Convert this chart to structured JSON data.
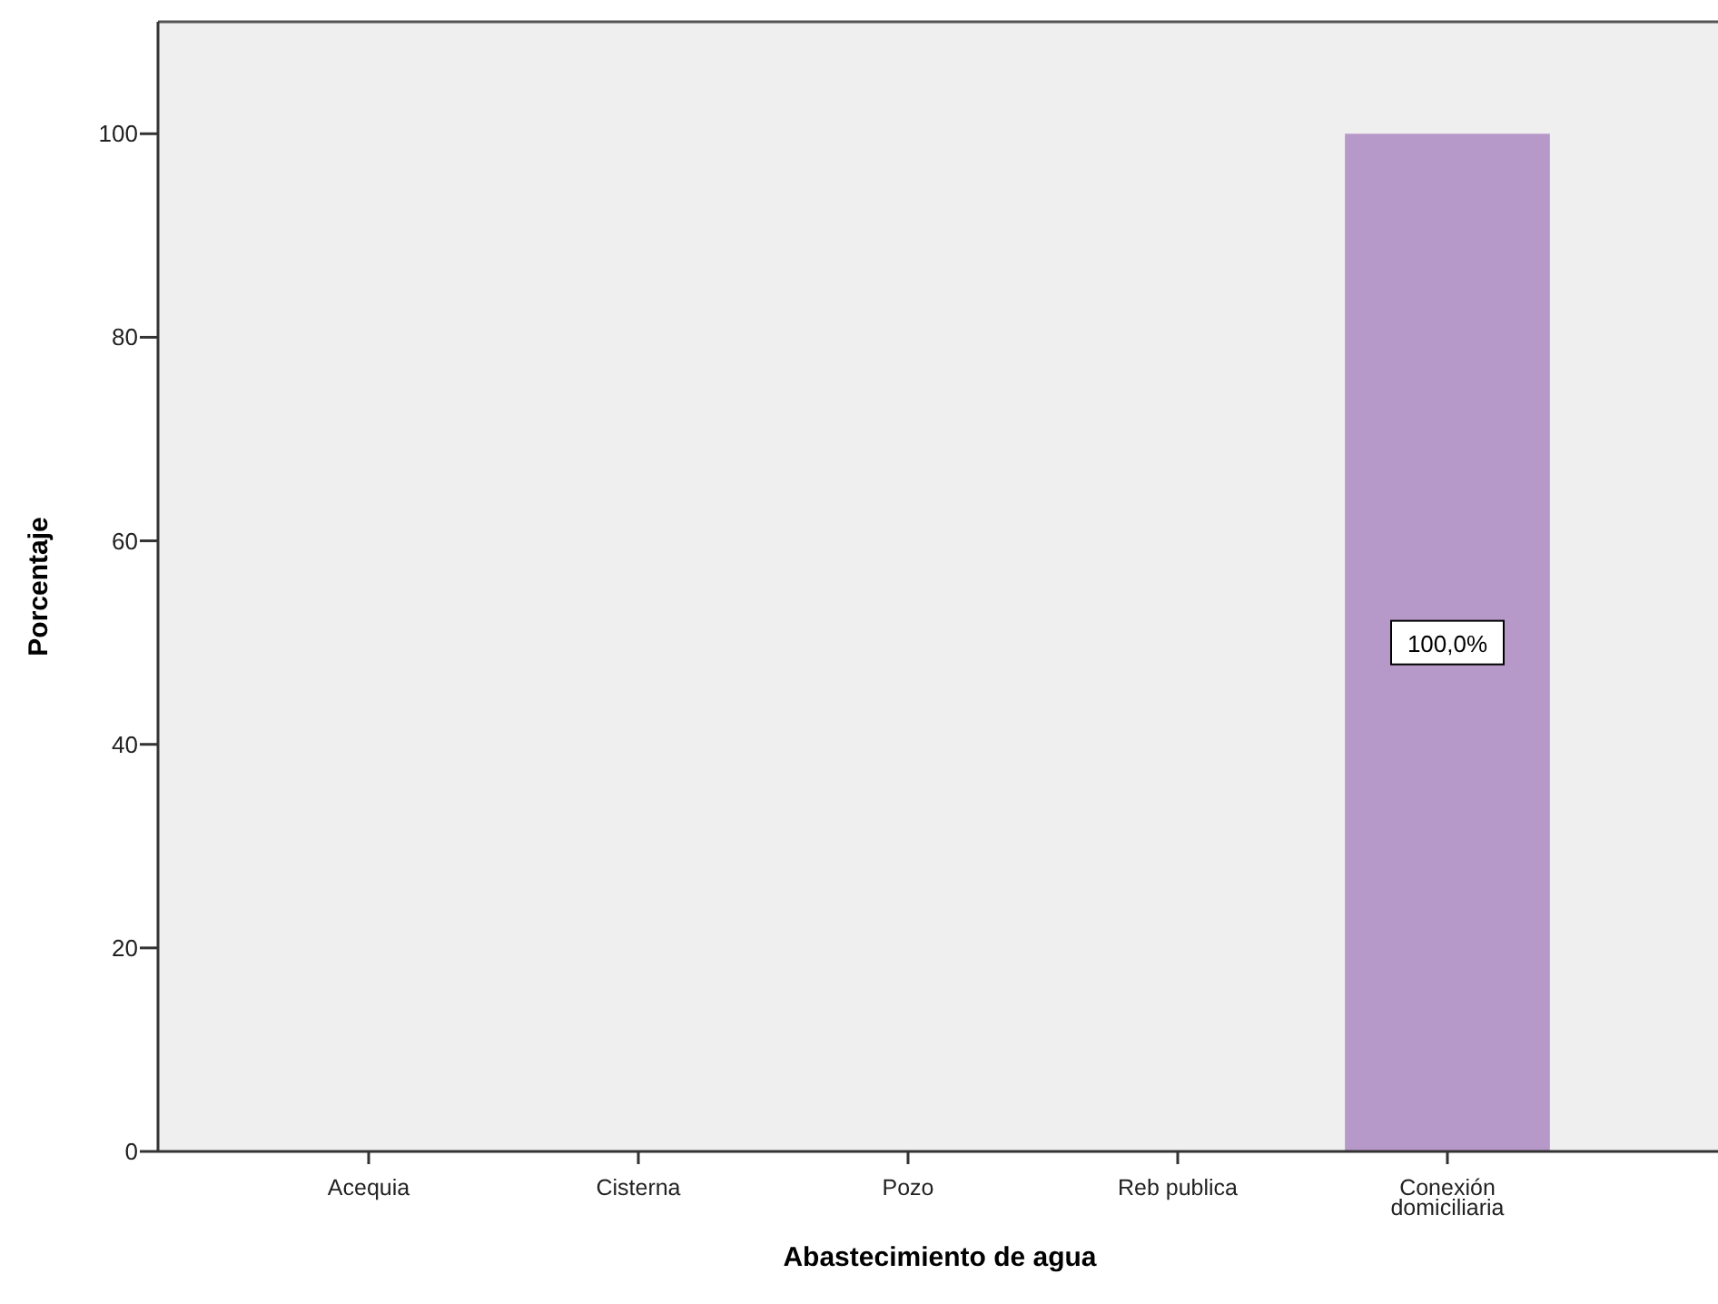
{
  "chart_data": {
    "type": "bar",
    "xlabel": "Abastecimiento de agua",
    "ylabel": "Porcentaje",
    "categories": [
      "Acequia",
      "Cisterna",
      "Pozo",
      "Reb publica",
      "Conexión domiciliaria"
    ],
    "values": [
      0,
      0,
      0,
      0,
      100
    ],
    "color": "#b799c9",
    "value_labels": [
      null,
      null,
      null,
      null,
      "100,0%"
    ],
    "ylim": [
      0,
      111
    ],
    "yticks": [
      0,
      20,
      40,
      60,
      80,
      100
    ]
  }
}
